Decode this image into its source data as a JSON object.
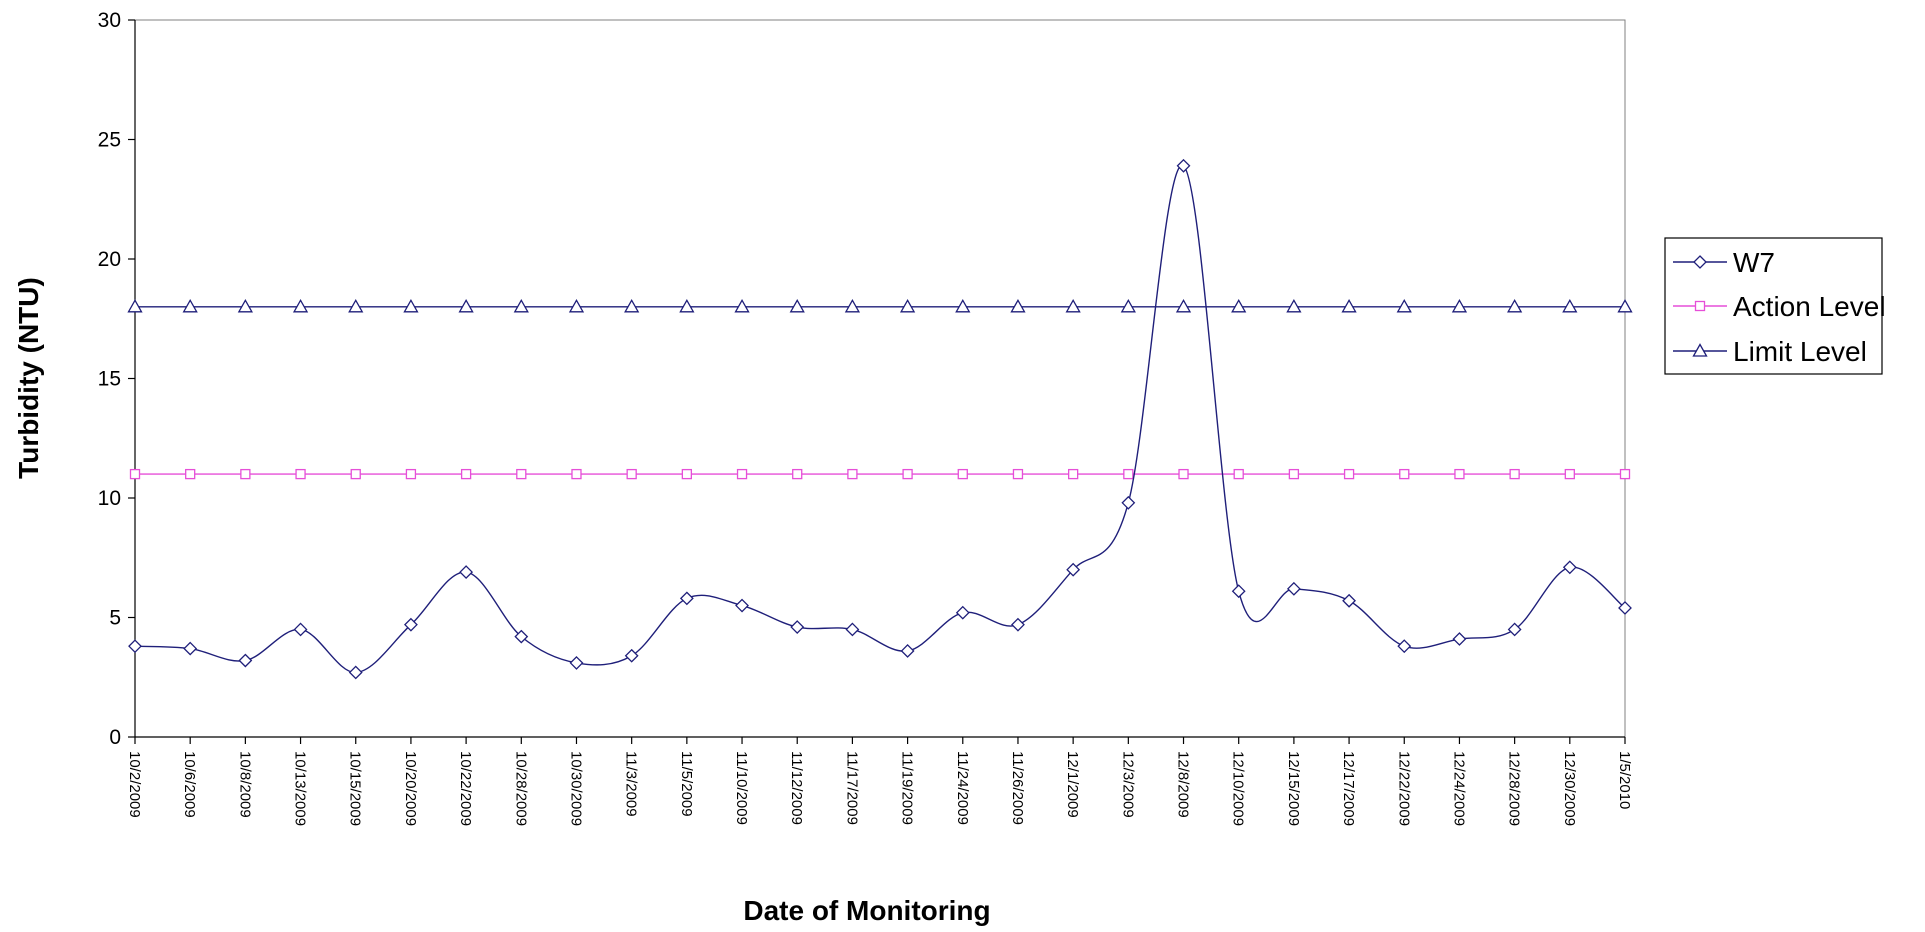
{
  "chart_data": {
    "type": "line",
    "xlabel": "Date of Monitoring",
    "ylabel": "Turbidity  (NTU)",
    "ylim": [
      0,
      30
    ],
    "yticks": [
      0,
      5,
      10,
      15,
      20,
      25,
      30
    ],
    "grid": false,
    "legend_position": "right",
    "categories": [
      "10/2/2009",
      "10/6/2009",
      "10/8/2009",
      "10/13/2009",
      "10/15/2009",
      "10/20/2009",
      "10/22/2009",
      "10/28/2009",
      "10/30/2009",
      "11/3/2009",
      "11/5/2009",
      "11/10/2009",
      "11/12/2009",
      "11/17/2009",
      "11/19/2009",
      "11/24/2009",
      "11/26/2009",
      "12/1/2009",
      "12/3/2009",
      "12/8/2009",
      "12/10/2009",
      "12/15/2009",
      "12/17/2009",
      "12/22/2009",
      "12/24/2009",
      "12/28/2009",
      "12/30/2009",
      "1/5/2010"
    ],
    "series": [
      {
        "name": "W7",
        "marker": "diamond",
        "color": "#1f1f7a",
        "smooth": true,
        "values": [
          3.8,
          3.7,
          3.2,
          4.5,
          2.7,
          4.7,
          6.9,
          4.2,
          3.1,
          3.4,
          5.8,
          5.5,
          4.6,
          4.5,
          3.6,
          5.2,
          4.7,
          7.0,
          9.8,
          23.9,
          6.1,
          6.2,
          5.7,
          3.8,
          4.1,
          4.5,
          7.1,
          5.4
        ]
      },
      {
        "name": "Action Level",
        "marker": "square",
        "color": "#e64fd8",
        "smooth": false,
        "values": [
          11,
          11,
          11,
          11,
          11,
          11,
          11,
          11,
          11,
          11,
          11,
          11,
          11,
          11,
          11,
          11,
          11,
          11,
          11,
          11,
          11,
          11,
          11,
          11,
          11,
          11,
          11,
          11
        ]
      },
      {
        "name": "Limit Level",
        "marker": "triangle",
        "color": "#1f1f7a",
        "smooth": false,
        "values": [
          18,
          18,
          18,
          18,
          18,
          18,
          18,
          18,
          18,
          18,
          18,
          18,
          18,
          18,
          18,
          18,
          18,
          18,
          18,
          18,
          18,
          18,
          18,
          18,
          18,
          18,
          18,
          18
        ]
      }
    ]
  }
}
